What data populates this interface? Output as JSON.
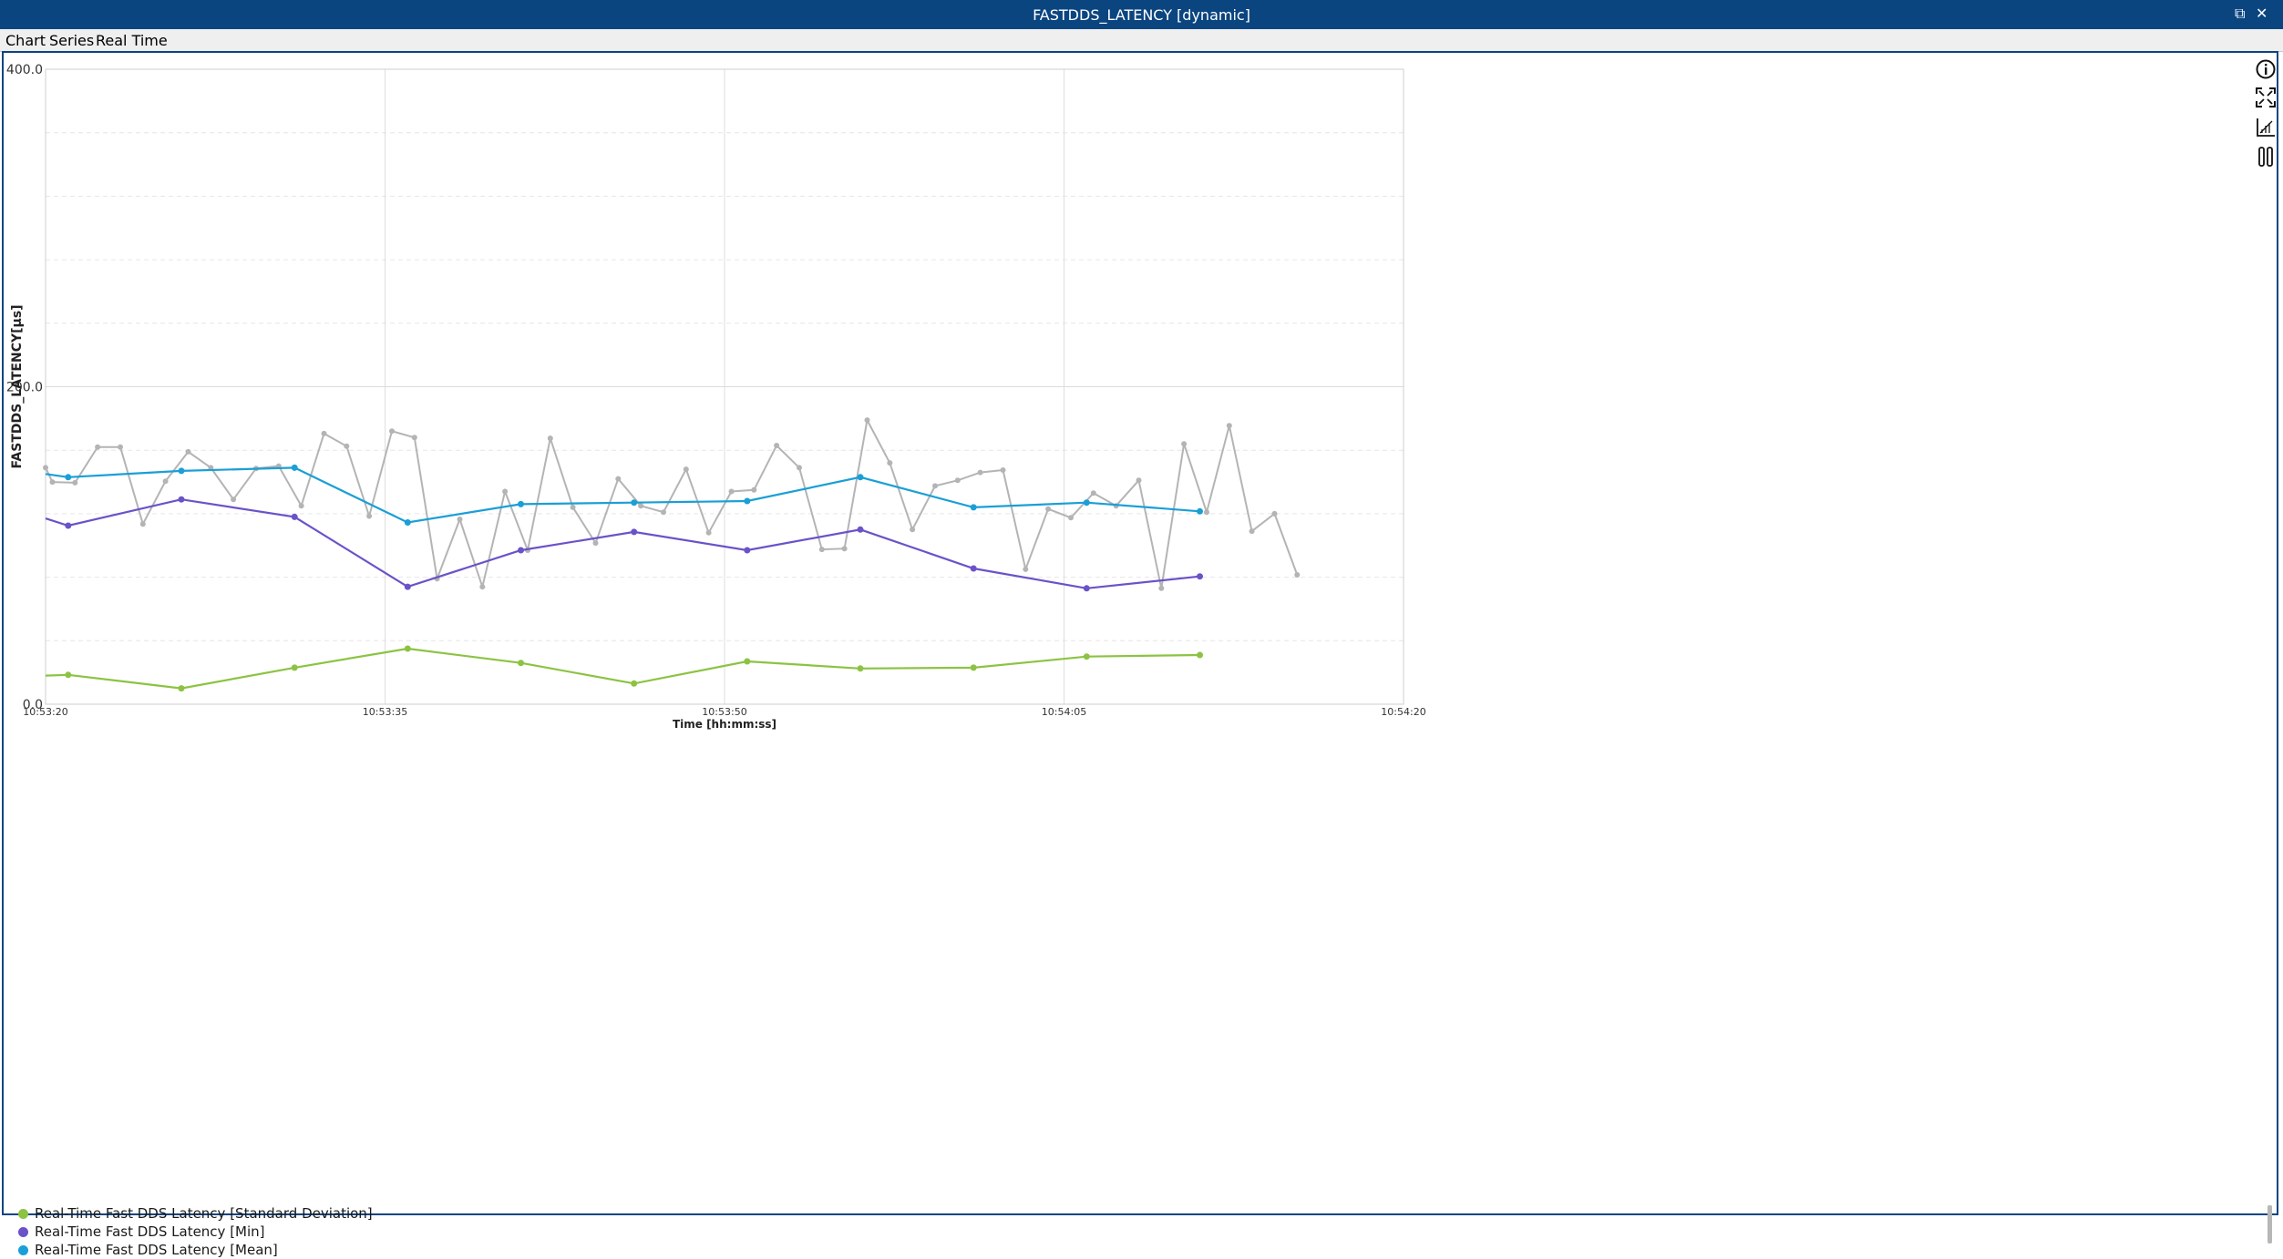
{
  "window": {
    "title": "FASTDDS_LATENCY [dynamic]",
    "restore_glyph": "⧉",
    "close_glyph": "✕"
  },
  "menu": [
    {
      "label": "Chart"
    },
    {
      "label": "Series"
    },
    {
      "label": "Real Time"
    }
  ],
  "toolbar": {
    "icons": [
      "info-icon",
      "fit-to-window-icon",
      "axis-scale-icon",
      "pause-icon"
    ]
  },
  "chart_data": {
    "type": "line",
    "xlabel": "Time [hh:mm:ss]",
    "ylabel": "FASTDDS_LATENCY[μs]",
    "ylim": [
      0,
      400
    ],
    "xlim": [
      "10:53:20",
      "10:54:20"
    ],
    "yticks": [
      "0.0",
      "200.0",
      "400.0"
    ],
    "xticks": [
      "10:53:20",
      "10:53:35",
      "10:53:50",
      "10:54:05",
      "10:54:20"
    ],
    "grid": true,
    "legend_position": "bottom-left",
    "series": [
      {
        "name": "Real-Time Fast DDS Latency [Standard Deviation]",
        "color": "#8cc342",
        "x": [
          "10:53:20",
          "10:53:21",
          "10:53:26",
          "10:53:31",
          "10:53:36",
          "10:53:41",
          "10:53:46",
          "10:53:51",
          "10:53:56",
          "10:54:01",
          "10:54:06",
          "10:54:11"
        ],
        "y": [
          18,
          18.5,
          10,
          23,
          35,
          26,
          13,
          27,
          22.5,
          23,
          30,
          31
        ]
      },
      {
        "name": "Real-Time Fast DDS Latency [Min]",
        "color": "#6b52c9",
        "x": [
          "10:53:20",
          "10:53:21",
          "10:53:26",
          "10:53:31",
          "10:53:36",
          "10:53:41",
          "10:53:46",
          "10:53:51",
          "10:53:56",
          "10:54:01",
          "10:54:06",
          "10:54:11"
        ],
        "y": [
          117,
          112.5,
          129,
          118,
          74,
          97,
          108.5,
          97,
          110,
          85.5,
          73,
          80.5
        ]
      },
      {
        "name": "Real-Time Fast DDS Latency [Mean]",
        "color": "#1a9fd6",
        "x": [
          "10:53:20",
          "10:53:21",
          "10:53:26",
          "10:53:31",
          "10:53:36",
          "10:53:41",
          "10:53:46",
          "10:53:51",
          "10:53:56",
          "10:54:01",
          "10:54:06",
          "10:54:11"
        ],
        "y": [
          145,
          143,
          147,
          149,
          114.5,
          126,
          127,
          128,
          143,
          124,
          127,
          121.5
        ]
      },
      {
        "name": "",
        "color": "#b4b4b4",
        "x": [
          "10:53:20",
          "10:53:20.3",
          "10:53:21.3",
          "10:53:22.3",
          "10:53:23.3",
          "10:53:24.3",
          "10:53:25.3",
          "10:53:26.3",
          "10:53:27.3",
          "10:53:28.3",
          "10:53:29.3",
          "10:53:30.3",
          "10:53:31.3",
          "10:53:32.3",
          "10:53:33.3",
          "10:53:34.3",
          "10:53:35.3",
          "10:53:36.3",
          "10:53:37.3",
          "10:53:38.3",
          "10:53:39.3",
          "10:53:40.3",
          "10:53:41.3",
          "10:53:42.3",
          "10:53:43.3",
          "10:53:44.3",
          "10:53:45.3",
          "10:53:46.3",
          "10:53:47.3",
          "10:53:48.3",
          "10:53:49.3",
          "10:53:50.3",
          "10:53:51.3",
          "10:53:52.3",
          "10:53:53.3",
          "10:53:54.3",
          "10:53:55.3",
          "10:53:56.3",
          "10:53:57.3",
          "10:53:58.3",
          "10:53:59.3",
          "10:54:00.3",
          "10:54:01.3",
          "10:54:02.3",
          "10:54:03.3",
          "10:54:04.3",
          "10:54:05.3",
          "10:54:06.3",
          "10:54:07.3",
          "10:54:08.3",
          "10:54:09.3",
          "10:54:10.3",
          "10:54:11.3",
          "10:54:12.3",
          "10:54:13.3",
          "10:54:14.3",
          "10:54:15.3"
        ],
        "y": [
          149,
          140,
          139.5,
          162,
          162,
          113.5,
          140.5,
          159,
          149,
          129,
          148.5,
          150,
          125,
          170.5,
          162.5,
          118.5,
          172,
          168,
          79,
          116.5,
          74,
          134,
          97,
          167.5,
          124,
          101.5,
          142,
          125,
          121,
          148,
          108,
          134,
          135,
          163,
          149,
          97.5,
          98,
          179,
          152,
          110,
          137.5,
          141,
          146,
          147.5,
          85,
          123,
          117.5,
          133,
          125,
          141,
          73,
          164,
          121,
          175.5,
          109,
          120,
          81.5
        ]
      }
    ]
  }
}
